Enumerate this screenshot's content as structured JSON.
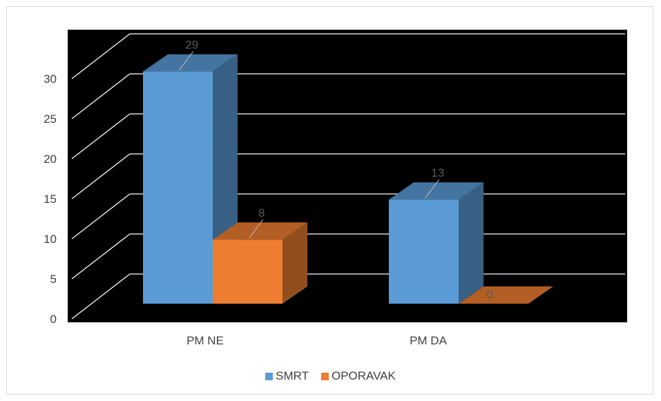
{
  "chart_data": {
    "type": "bar",
    "subtype": "3d-clustered-column",
    "title": "",
    "xlabel": "",
    "ylabel": "",
    "categories": [
      "PM NE",
      "PM DA"
    ],
    "series": [
      {
        "name": "SMRT",
        "values": [
          29,
          13
        ],
        "color": "#5b9bd5"
      },
      {
        "name": "OPORAVAK",
        "values": [
          8,
          0
        ],
        "color": "#ed7d31"
      }
    ],
    "ylim": [
      0,
      30
    ],
    "yticks": [
      0,
      5,
      10,
      15,
      20,
      25,
      30
    ],
    "ytick_labels": [
      "0",
      "5",
      "10",
      "15",
      "20",
      "25",
      "30"
    ],
    "grid": true,
    "legend_position": "bottom",
    "plot_background": "#000000"
  }
}
